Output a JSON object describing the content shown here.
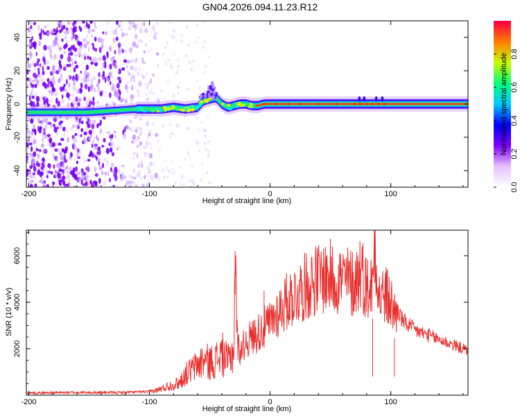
{
  "title": "GN04.2026.094.11.23.R12",
  "chart_data": [
    {
      "type": "heatmap",
      "xlabel": "Height of straight line (km)",
      "ylabel": "Frequency (Hz)",
      "xlim": [
        -202,
        164
      ],
      "ylim": [
        -50,
        50
      ],
      "xticks": [
        -200,
        -100,
        0,
        100
      ],
      "yticks": [
        -40,
        -20,
        0,
        20,
        40
      ],
      "colorbar": {
        "label": "Normalized spectral amplitude",
        "range": [
          0,
          1
        ],
        "ticks": [
          "0.0",
          "0.2",
          "0.4",
          "0.6",
          "0.8"
        ],
        "colormap": [
          "#ffffff",
          "#e8c0ff",
          "#8000ff",
          "#0000ff",
          "#00c8ff",
          "#00ff80",
          "#c8ff00",
          "#ff8000",
          "#ff0040"
        ]
      },
      "ridge": {
        "x": [
          -200,
          -150,
          -110,
          -100,
          -90,
          -80,
          -70,
          -60,
          -55,
          -50,
          -45,
          -40,
          -35,
          -30,
          -25,
          -20,
          -15,
          -10,
          -5,
          0,
          20,
          50,
          80,
          100,
          130,
          164
        ],
        "y": [
          -5,
          -5,
          -3,
          -3,
          -3,
          -2,
          -3,
          -2,
          2,
          3,
          4,
          0,
          -2,
          -1,
          0,
          0,
          -1,
          -1,
          0,
          0,
          0,
          0,
          0,
          0,
          0,
          0
        ]
      }
    },
    {
      "type": "line",
      "xlabel": "Height of straight line (km)",
      "ylabel": "SNR (10 * v/v)",
      "xlim": [
        -202,
        164
      ],
      "ylim": [
        0,
        7100
      ],
      "xticks": [
        -200,
        -100,
        0,
        100
      ],
      "yticks": [
        2000,
        4000,
        6000
      ],
      "series": [
        {
          "color": "#e8302e",
          "x": [
            -202,
            -190,
            -180,
            -170,
            -160,
            -150,
            -140,
            -130,
            -120,
            -110,
            -100,
            -95,
            -90,
            -85,
            -80,
            -75,
            -70,
            -65,
            -60,
            -55,
            -50,
            -45,
            -40,
            -35,
            -30,
            -29,
            -27,
            -25,
            -20,
            -15,
            -10,
            -5,
            0,
            5,
            10,
            15,
            20,
            25,
            30,
            35,
            40,
            45,
            50,
            55,
            60,
            65,
            70,
            75,
            80,
            85,
            87,
            90,
            95,
            100,
            103,
            105,
            110,
            115,
            120,
            125,
            130,
            135,
            140,
            145,
            150,
            155,
            160,
            164
          ],
          "y": [
            100,
            100,
            110,
            110,
            120,
            110,
            120,
            110,
            120,
            140,
            150,
            200,
            280,
            380,
            450,
            550,
            900,
            1100,
            1300,
            1500,
            1400,
            1500,
            1800,
            1400,
            2000,
            6200,
            2200,
            1900,
            2300,
            2500,
            2700,
            2900,
            3100,
            3500,
            3800,
            4100,
            4300,
            4500,
            4700,
            4900,
            5000,
            5100,
            5100,
            5000,
            5000,
            4900,
            4800,
            5500,
            4600,
            4700,
            7000,
            4200,
            4300,
            4000,
            3500,
            3700,
            3200,
            3000,
            2800,
            2700,
            2600,
            2500,
            2400,
            2300,
            2200,
            2100,
            2000,
            1900
          ]
        }
      ]
    }
  ]
}
